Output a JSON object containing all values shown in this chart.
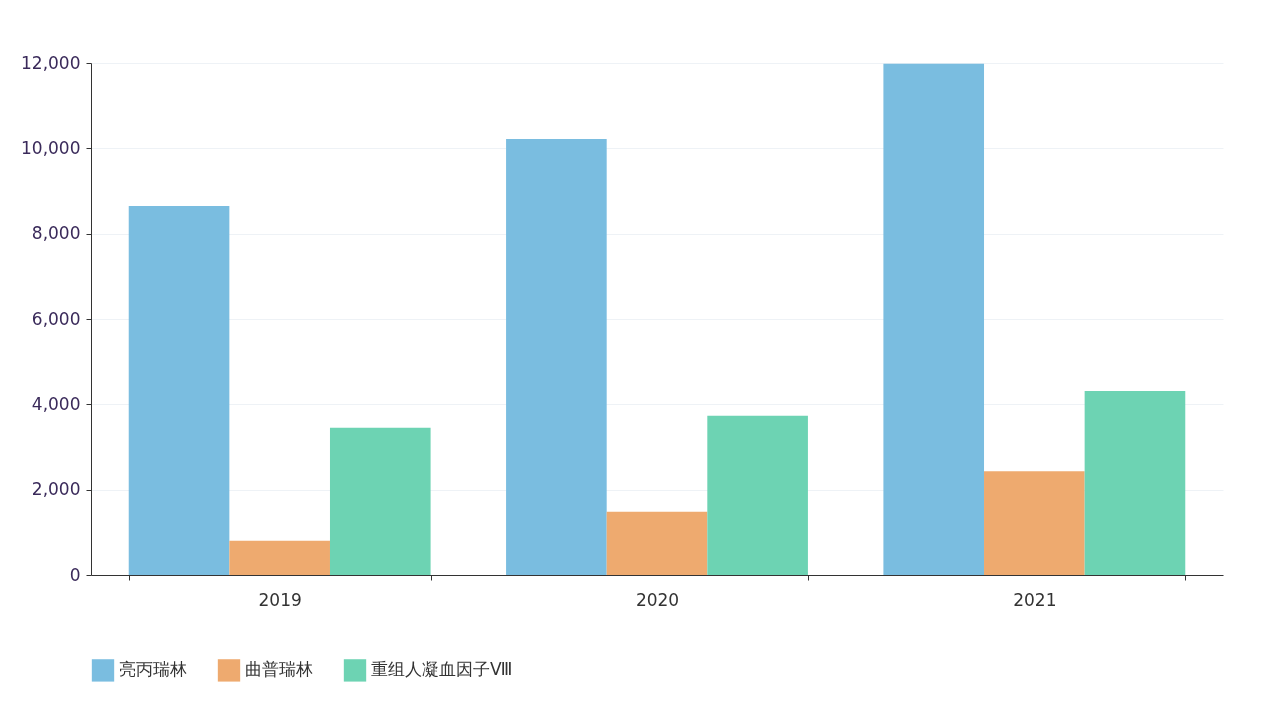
{
  "chart_data": {
    "type": "bar",
    "categories": [
      "2019",
      "2020",
      "2021"
    ],
    "series": [
      {
        "name": "亮丙瑞林",
        "color": "#7abde0",
        "values": [
          8650,
          10220,
          11980
        ]
      },
      {
        "name": "曲普瑞林",
        "color": "#eeaa6f",
        "values": [
          800,
          1480,
          2430
        ]
      },
      {
        "name": "重组人凝血因子Ⅷ",
        "color": "#6dd3b3",
        "values": [
          3450,
          3730,
          4310
        ]
      }
    ],
    "ylim": [
      0,
      12000
    ],
    "yticks": [
      {
        "value": 0,
        "label": "0"
      },
      {
        "value": 2000,
        "label": "2,000"
      },
      {
        "value": 4000,
        "label": "4,000"
      },
      {
        "value": 6000,
        "label": "6,000"
      },
      {
        "value": 8000,
        "label": "8,000"
      },
      {
        "value": 10000,
        "label": "10,000"
      },
      {
        "value": 12000,
        "label": "12,000"
      }
    ],
    "grid": "y",
    "legend": "bottom"
  }
}
